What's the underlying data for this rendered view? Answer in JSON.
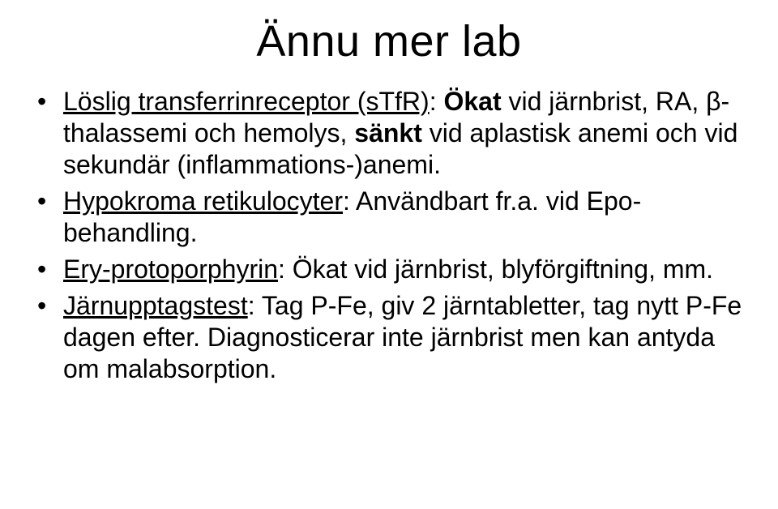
{
  "title": "Ännu mer lab",
  "bullets": [
    {
      "lead_u": "Löslig transferrinreceptor (sTfR)",
      "after_lead": ": ",
      "bold1": "Ökat",
      "mid": " vid järnbrist, RA, β-thalassemi och hemolys, ",
      "bold2": "sänkt",
      "tail": " vid aplastisk anemi och vid sekundär (inflammations-)anemi."
    },
    {
      "lead_u": "Hypokroma retikulocyter",
      "after_lead": ": ",
      "tail": "Användbart fr.a. vid Epo-behandling."
    },
    {
      "lead_u": "Ery-protoporphyrin",
      "after_lead": ": ",
      "tail": "Ökat vid järnbrist, blyförgiftning, mm."
    },
    {
      "lead_u": "Järnupptagstest",
      "after_lead": ": ",
      "tail": "Tag P-Fe, giv 2 järntabletter, tag nytt P-Fe dagen efter. Diagnosticerar inte järnbrist men kan antyda om malabsorption."
    }
  ]
}
